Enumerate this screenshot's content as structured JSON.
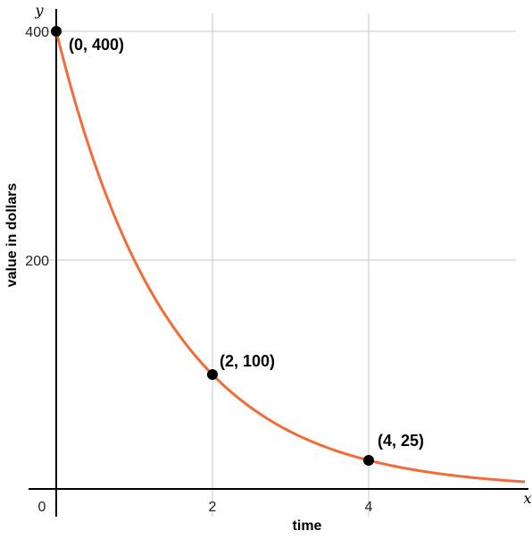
{
  "chart_data": {
    "type": "line",
    "function": "y = 400 * 0.5^x",
    "xlabel": "time",
    "ylabel": "value in dollars",
    "x_var": "x",
    "y_var": "y",
    "xlim": [
      -0.35,
      6
    ],
    "ylim": [
      -10,
      430
    ],
    "x_gridlines": [
      2,
      4
    ],
    "y_gridlines": [
      200,
      400
    ],
    "grid": true,
    "origin_label": "0",
    "x_ticks": [
      {
        "value": 2,
        "label": "2"
      },
      {
        "value": 4,
        "label": "4"
      }
    ],
    "y_ticks": [
      {
        "value": 200,
        "label": "200"
      },
      {
        "value": 400,
        "label": "400"
      }
    ],
    "series": [
      {
        "color": "#f26b38",
        "x": [
          0,
          0.5,
          1,
          1.5,
          2,
          2.5,
          3,
          3.5,
          4,
          4.5,
          5,
          5.5,
          6
        ],
        "y": [
          400,
          282.8,
          200,
          141.4,
          100,
          70.7,
          50,
          35.4,
          25,
          17.7,
          12.5,
          8.8,
          6.25
        ]
      }
    ],
    "points": [
      {
        "x": 0,
        "y": 400,
        "label": "(0, 400)"
      },
      {
        "x": 2,
        "y": 100,
        "label": "(2, 100)"
      },
      {
        "x": 4,
        "y": 25,
        "label": "(4, 25)"
      }
    ]
  }
}
